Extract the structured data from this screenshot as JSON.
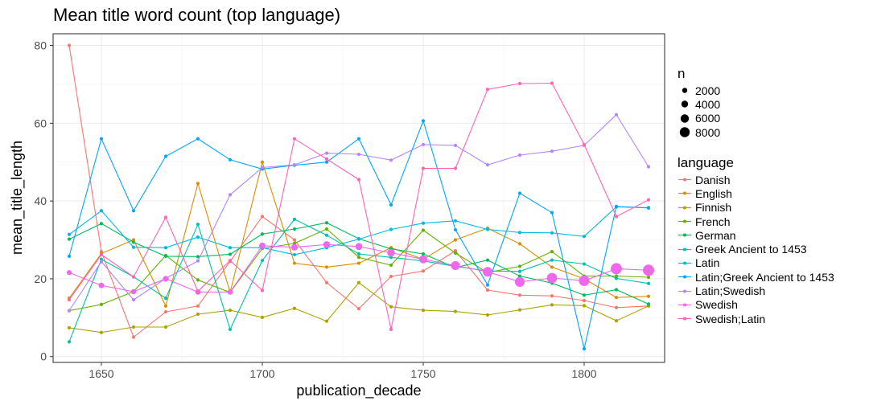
{
  "chart_data": {
    "type": "line",
    "title": "Mean title word count (top language)",
    "xlabel": "publication_decade",
    "ylabel": "mean_title_length",
    "xlim": [
      1635,
      1825
    ],
    "ylim": [
      -1.5,
      83
    ],
    "x_ticks": [
      1650,
      1700,
      1750,
      1800
    ],
    "y_ticks": [
      0,
      20,
      40,
      60,
      80
    ],
    "grid": true,
    "legend_placement": "right",
    "size_legend": {
      "title": "n",
      "entries": [
        "2000",
        "4000",
        "6000",
        "8000"
      ]
    },
    "color_legend_title": "language",
    "series": [
      {
        "name": "Danish",
        "color": "#F8766D",
        "x": [
          1640,
          1650,
          1660,
          1670,
          1680,
          1690,
          1700,
          1710,
          1720,
          1730,
          1740,
          1750,
          1760,
          1770,
          1780,
          1790,
          1800,
          1810,
          1820
        ],
        "y": [
          80,
          27,
          5,
          11.5,
          13,
          24.5,
          36,
          30,
          19,
          12.3,
          20.6,
          22,
          27.2,
          17.1,
          15.8,
          15.6,
          14.4,
          12.6,
          13
        ]
      },
      {
        "name": "English",
        "color": "#DB8E00",
        "x": [
          1640,
          1650,
          1660,
          1670,
          1680,
          1690,
          1700,
          1710,
          1720,
          1730,
          1740,
          1750,
          1760,
          1770,
          1780,
          1790,
          1800,
          1810,
          1820
        ],
        "y": [
          15,
          26.5,
          30,
          13,
          44.5,
          16.5,
          50,
          24,
          23,
          24,
          28,
          25,
          30,
          33,
          29,
          23,
          20,
          15.2,
          15.5
        ]
      },
      {
        "name": "Finnish",
        "color": "#AEA200",
        "x": [
          1640,
          1650,
          1660,
          1670,
          1680,
          1690,
          1700,
          1710,
          1720,
          1730,
          1740,
          1750,
          1760,
          1770,
          1780,
          1790,
          1800,
          1810,
          1820
        ],
        "y": [
          7.4,
          6.2,
          7.6,
          7.6,
          10.9,
          11.9,
          10.1,
          12.4,
          9.1,
          19,
          12.8,
          11.9,
          11.6,
          10.7,
          12,
          13.3,
          13.1,
          9.2,
          13
        ]
      },
      {
        "name": "French",
        "color": "#64B200",
        "x": [
          1640,
          1650,
          1660,
          1670,
          1680,
          1690,
          1700,
          1710,
          1720,
          1730,
          1740,
          1750,
          1760,
          1770,
          1780,
          1790,
          1800,
          1810,
          1820
        ],
        "y": [
          11.8,
          13.4,
          16.7,
          26,
          19.7,
          16.5,
          27.8,
          29.1,
          32.8,
          25.5,
          23.5,
          32.5,
          26.6,
          21.6,
          23.2,
          27,
          20.7,
          20.7,
          20.4
        ]
      },
      {
        "name": "German",
        "color": "#00BD5C",
        "x": [
          1640,
          1650,
          1660,
          1670,
          1680,
          1690,
          1700,
          1710,
          1720,
          1730,
          1740,
          1750,
          1760,
          1770,
          1780,
          1790,
          1800,
          1810,
          1820
        ],
        "y": [
          30.2,
          34.2,
          29.4,
          25.8,
          25.7,
          26.3,
          31.5,
          32.8,
          34.4,
          30.3,
          27.7,
          26.4,
          22.9,
          24.8,
          20.7,
          18.9,
          15.8,
          17.2,
          13.5
        ]
      },
      {
        "name": "Greek Ancient to 1453",
        "color": "#00C1A7",
        "x": [
          1640,
          1650,
          1660,
          1670,
          1680,
          1690,
          1700,
          1710,
          1720,
          1730,
          1740,
          1750,
          1760,
          1770,
          1780,
          1790,
          1800,
          1810,
          1820
        ],
        "y": [
          3.8,
          25,
          20.5,
          15,
          34,
          7,
          24.7,
          35.3,
          31.2,
          26.4,
          25.5,
          24.6,
          23.2,
          22,
          21.9,
          24.8,
          23.8,
          20.1,
          18.8
        ]
      },
      {
        "name": "Latin",
        "color": "#00BADE",
        "x": [
          1640,
          1650,
          1660,
          1670,
          1680,
          1690,
          1700,
          1710,
          1720,
          1730,
          1740,
          1750,
          1760,
          1770,
          1780,
          1790,
          1800,
          1810,
          1820
        ],
        "y": [
          31.4,
          37.5,
          28.1,
          28,
          30.7,
          28,
          28,
          26.2,
          28,
          30.2,
          32.7,
          34.3,
          34.9,
          32.7,
          31.9,
          31.8,
          30.9,
          38.5,
          38.3
        ]
      },
      {
        "name": "Latin;Greek Ancient to 1453",
        "color": "#00A6FF",
        "x": [
          1640,
          1650,
          1660,
          1670,
          1680,
          1690,
          1700,
          1710,
          1720,
          1730,
          1740,
          1750,
          1760,
          1770,
          1780,
          1790,
          1800,
          1810,
          1820
        ],
        "y": [
          25.8,
          56,
          37.5,
          51.5,
          56,
          50.6,
          48.2,
          49.2,
          50,
          56,
          39,
          60.6,
          32.6,
          18.4,
          42,
          37,
          2,
          38.6,
          38.2
        ]
      },
      {
        "name": "Latin;Swedish",
        "color": "#B385FF",
        "x": [
          1640,
          1650,
          1660,
          1670,
          1680,
          1690,
          1700,
          1710,
          1720,
          1730,
          1740,
          1750,
          1760,
          1770,
          1780,
          1790,
          1800,
          1810,
          1820
        ],
        "y": [
          11.8,
          24.4,
          14.6,
          20.1,
          24.6,
          41.6,
          48.6,
          49.3,
          52.3,
          52,
          50.5,
          54.5,
          54.3,
          49.3,
          51.8,
          52.8,
          54.3,
          62.2,
          48.8
        ]
      },
      {
        "name": "Swedish",
        "color": "#EF67EB",
        "x": [
          1640,
          1650,
          1660,
          1670,
          1680,
          1690,
          1700,
          1710,
          1720,
          1730,
          1740,
          1750,
          1760,
          1770,
          1780,
          1790,
          1800,
          1810,
          1820
        ],
        "y": [
          21.6,
          18.3,
          16.7,
          20,
          16.6,
          16.6,
          28.5,
          28.1,
          28.8,
          28.3,
          26.7,
          25,
          23.4,
          21.8,
          19.2,
          20.2,
          19.5,
          22.6,
          22.2
        ],
        "n": [
          400,
          700,
          500,
          800,
          600,
          600,
          1200,
          1400,
          1600,
          1800,
          2400,
          3000,
          4000,
          5200,
          5600,
          6200,
          6800,
          8000,
          8200
        ]
      },
      {
        "name": "Swedish;Latin",
        "color": "#FF63B6",
        "x": [
          1640,
          1650,
          1660,
          1670,
          1680,
          1690,
          1700,
          1710,
          1720,
          1730,
          1740,
          1750,
          1760,
          1770,
          1780,
          1790,
          1800,
          1810,
          1820
        ],
        "y": [
          14.6,
          26.2,
          20.5,
          35.8,
          16.8,
          24.7,
          17,
          56,
          50.8,
          45.5,
          7,
          48.4,
          48.4,
          68.7,
          70.2,
          70.3,
          54.5,
          36,
          40.3
        ]
      }
    ]
  }
}
